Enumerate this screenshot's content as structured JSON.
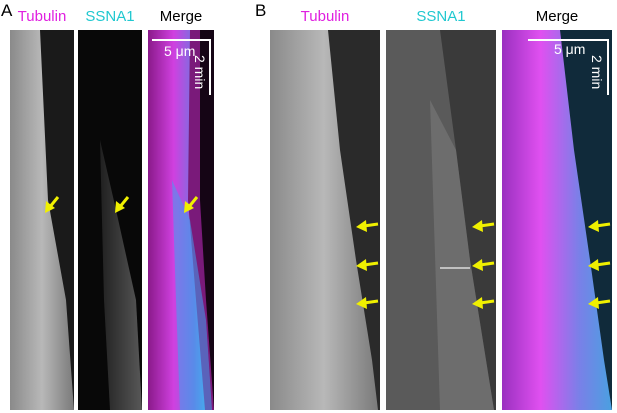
{
  "panels": [
    {
      "label": "A",
      "channels": [
        {
          "name": "Tubulin",
          "color": "#e020e0"
        },
        {
          "name": "SSNA1",
          "color": "#20c8d0"
        },
        {
          "name": "Merge",
          "color": "#000000"
        }
      ],
      "scale_bar": {
        "length": "5 μm",
        "time": "2 min"
      }
    },
    {
      "label": "B",
      "channels": [
        {
          "name": "Tubulin",
          "color": "#e020e0"
        },
        {
          "name": "SSNA1",
          "color": "#20c8d0"
        },
        {
          "name": "Merge",
          "color": "#000000"
        }
      ],
      "scale_bar": {
        "length": "5 μm",
        "time": "2 min"
      }
    }
  ]
}
